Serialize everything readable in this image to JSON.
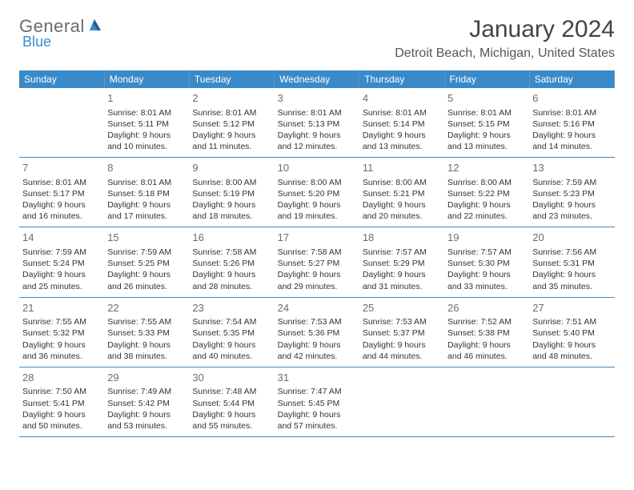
{
  "logo": {
    "word1": "General",
    "word2": "Blue"
  },
  "title": "January 2024",
  "location": "Detroit Beach, Michigan, United States",
  "weekdays": [
    "Sunday",
    "Monday",
    "Tuesday",
    "Wednesday",
    "Thursday",
    "Friday",
    "Saturday"
  ],
  "colors": {
    "header_bg": "#3a8ac9",
    "header_text": "#ffffff",
    "row_border": "#3a8ac9",
    "daynum": "#6d6d6d",
    "body_text": "#333333",
    "logo_gray": "#6b6b6b",
    "logo_blue": "#3a8ac9",
    "background": "#ffffff"
  },
  "typography": {
    "title_fontsize": 30,
    "location_fontsize": 16,
    "weekday_fontsize": 12,
    "daynum_fontsize": 13,
    "detail_fontsize": 10.5,
    "font_family": "Arial"
  },
  "layout": {
    "columns": 7,
    "rows": 5,
    "first_day_column": 1
  },
  "days": [
    {
      "n": 1,
      "sunrise": "8:01 AM",
      "sunset": "5:11 PM",
      "daylight": "9 hours and 10 minutes."
    },
    {
      "n": 2,
      "sunrise": "8:01 AM",
      "sunset": "5:12 PM",
      "daylight": "9 hours and 11 minutes."
    },
    {
      "n": 3,
      "sunrise": "8:01 AM",
      "sunset": "5:13 PM",
      "daylight": "9 hours and 12 minutes."
    },
    {
      "n": 4,
      "sunrise": "8:01 AM",
      "sunset": "5:14 PM",
      "daylight": "9 hours and 13 minutes."
    },
    {
      "n": 5,
      "sunrise": "8:01 AM",
      "sunset": "5:15 PM",
      "daylight": "9 hours and 13 minutes."
    },
    {
      "n": 6,
      "sunrise": "8:01 AM",
      "sunset": "5:16 PM",
      "daylight": "9 hours and 14 minutes."
    },
    {
      "n": 7,
      "sunrise": "8:01 AM",
      "sunset": "5:17 PM",
      "daylight": "9 hours and 16 minutes."
    },
    {
      "n": 8,
      "sunrise": "8:01 AM",
      "sunset": "5:18 PM",
      "daylight": "9 hours and 17 minutes."
    },
    {
      "n": 9,
      "sunrise": "8:00 AM",
      "sunset": "5:19 PM",
      "daylight": "9 hours and 18 minutes."
    },
    {
      "n": 10,
      "sunrise": "8:00 AM",
      "sunset": "5:20 PM",
      "daylight": "9 hours and 19 minutes."
    },
    {
      "n": 11,
      "sunrise": "8:00 AM",
      "sunset": "5:21 PM",
      "daylight": "9 hours and 20 minutes."
    },
    {
      "n": 12,
      "sunrise": "8:00 AM",
      "sunset": "5:22 PM",
      "daylight": "9 hours and 22 minutes."
    },
    {
      "n": 13,
      "sunrise": "7:59 AM",
      "sunset": "5:23 PM",
      "daylight": "9 hours and 23 minutes."
    },
    {
      "n": 14,
      "sunrise": "7:59 AM",
      "sunset": "5:24 PM",
      "daylight": "9 hours and 25 minutes."
    },
    {
      "n": 15,
      "sunrise": "7:59 AM",
      "sunset": "5:25 PM",
      "daylight": "9 hours and 26 minutes."
    },
    {
      "n": 16,
      "sunrise": "7:58 AM",
      "sunset": "5:26 PM",
      "daylight": "9 hours and 28 minutes."
    },
    {
      "n": 17,
      "sunrise": "7:58 AM",
      "sunset": "5:27 PM",
      "daylight": "9 hours and 29 minutes."
    },
    {
      "n": 18,
      "sunrise": "7:57 AM",
      "sunset": "5:29 PM",
      "daylight": "9 hours and 31 minutes."
    },
    {
      "n": 19,
      "sunrise": "7:57 AM",
      "sunset": "5:30 PM",
      "daylight": "9 hours and 33 minutes."
    },
    {
      "n": 20,
      "sunrise": "7:56 AM",
      "sunset": "5:31 PM",
      "daylight": "9 hours and 35 minutes."
    },
    {
      "n": 21,
      "sunrise": "7:55 AM",
      "sunset": "5:32 PM",
      "daylight": "9 hours and 36 minutes."
    },
    {
      "n": 22,
      "sunrise": "7:55 AM",
      "sunset": "5:33 PM",
      "daylight": "9 hours and 38 minutes."
    },
    {
      "n": 23,
      "sunrise": "7:54 AM",
      "sunset": "5:35 PM",
      "daylight": "9 hours and 40 minutes."
    },
    {
      "n": 24,
      "sunrise": "7:53 AM",
      "sunset": "5:36 PM",
      "daylight": "9 hours and 42 minutes."
    },
    {
      "n": 25,
      "sunrise": "7:53 AM",
      "sunset": "5:37 PM",
      "daylight": "9 hours and 44 minutes."
    },
    {
      "n": 26,
      "sunrise": "7:52 AM",
      "sunset": "5:38 PM",
      "daylight": "9 hours and 46 minutes."
    },
    {
      "n": 27,
      "sunrise": "7:51 AM",
      "sunset": "5:40 PM",
      "daylight": "9 hours and 48 minutes."
    },
    {
      "n": 28,
      "sunrise": "7:50 AM",
      "sunset": "5:41 PM",
      "daylight": "9 hours and 50 minutes."
    },
    {
      "n": 29,
      "sunrise": "7:49 AM",
      "sunset": "5:42 PM",
      "daylight": "9 hours and 53 minutes."
    },
    {
      "n": 30,
      "sunrise": "7:48 AM",
      "sunset": "5:44 PM",
      "daylight": "9 hours and 55 minutes."
    },
    {
      "n": 31,
      "sunrise": "7:47 AM",
      "sunset": "5:45 PM",
      "daylight": "9 hours and 57 minutes."
    }
  ],
  "labels": {
    "sunrise": "Sunrise:",
    "sunset": "Sunset:",
    "daylight": "Daylight:"
  }
}
